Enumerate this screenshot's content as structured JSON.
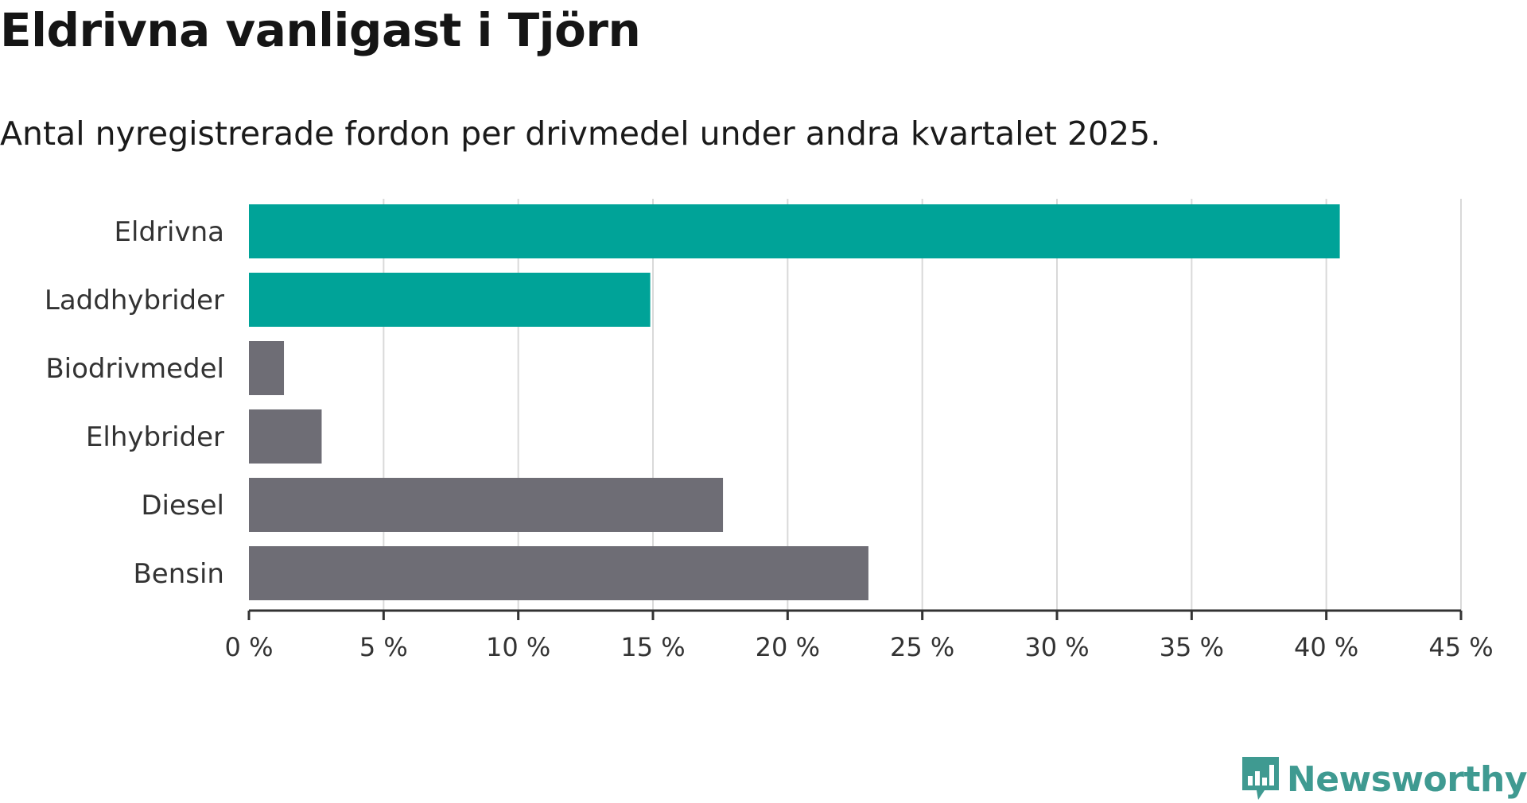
{
  "title": "Eldrivna vanligast i Tjörn",
  "subtitle": "Antal nyregistrerade fordon per drivmedel under andra kvartalet 2025.",
  "brand": {
    "name": "Newsworthy",
    "color": "#3f9a91",
    "icon": "newsworthy-logo-icon"
  },
  "colors": {
    "highlight": "#00a398",
    "default": "#6e6d75",
    "grid": "#d9d9d9",
    "axis": "#333333"
  },
  "chart_data": {
    "type": "bar",
    "orientation": "horizontal",
    "categories": [
      "Eldrivna",
      "Laddhybrider",
      "Biodrivmedel",
      "Elhybrider",
      "Diesel",
      "Bensin"
    ],
    "values": [
      40.5,
      14.9,
      1.3,
      2.7,
      17.6,
      23.0
    ],
    "highlighted": [
      true,
      true,
      false,
      false,
      false,
      false
    ],
    "xlim": [
      0,
      45
    ],
    "ticks": [
      0,
      5,
      10,
      15,
      20,
      25,
      30,
      35,
      40,
      45
    ],
    "tick_labels": [
      "0 %",
      "5 %",
      "10 %",
      "15 %",
      "20 %",
      "25 %",
      "30 %",
      "35 %",
      "40 %",
      "45 %"
    ],
    "grid": "vertical",
    "xlabel": "",
    "ylabel": ""
  }
}
